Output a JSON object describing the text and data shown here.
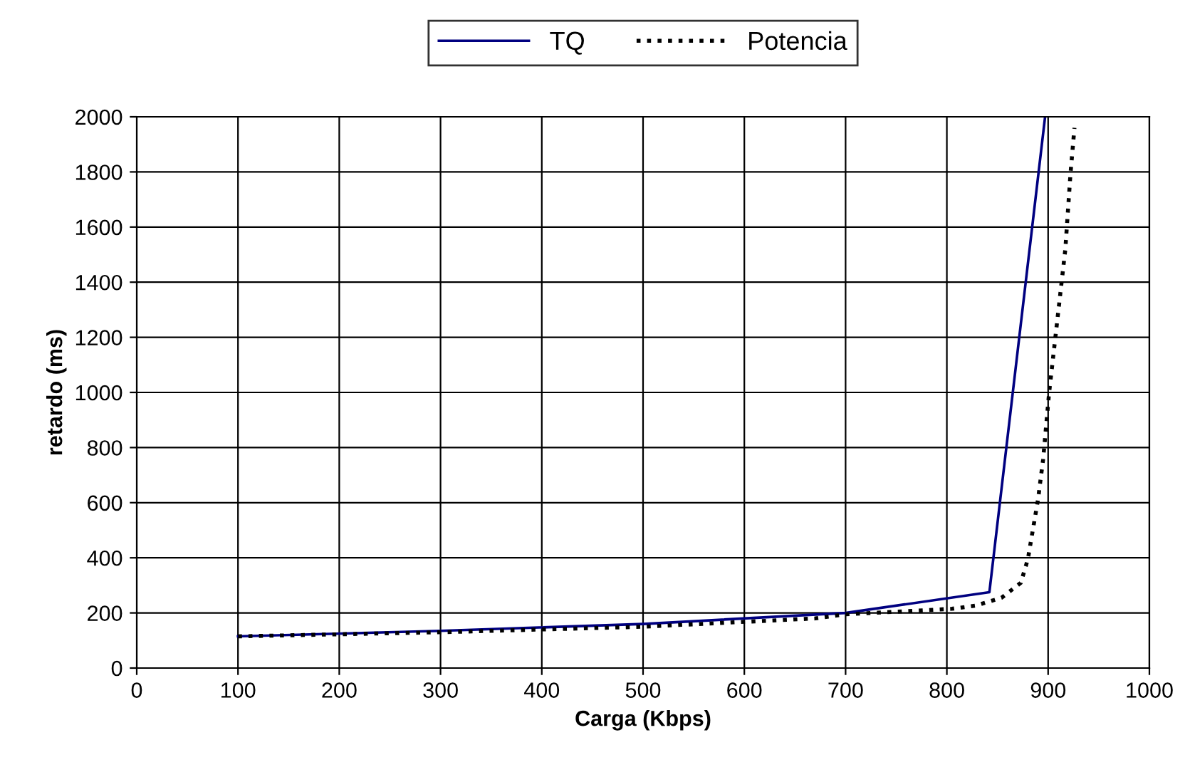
{
  "chart_data": {
    "type": "line",
    "xlabel": "Carga (Kbps)",
    "ylabel": "retardo (ms)",
    "xlim": [
      0,
      1000
    ],
    "xticks": [
      0,
      100,
      200,
      300,
      400,
      500,
      600,
      700,
      800,
      900,
      1000
    ],
    "ylim": [
      0,
      2000
    ],
    "yticks": [
      0,
      200,
      400,
      600,
      800,
      1000,
      1200,
      1400,
      1600,
      1800,
      2000
    ],
    "grid": true,
    "legend": "top",
    "series": [
      {
        "name": "TQ",
        "color": "#000080",
        "line_style": "solid",
        "x": [
          100,
          300,
          500,
          700,
          842,
          897
        ],
        "values": [
          115,
          135,
          160,
          200,
          275,
          2000
        ]
      },
      {
        "name": "Potencia",
        "color": "#000000",
        "line_style": "dotted",
        "x": [
          100,
          300,
          500,
          670,
          700,
          805,
          829,
          854,
          873,
          880,
          890,
          895,
          901,
          907,
          917,
          922,
          926
        ],
        "values": [
          115,
          130,
          150,
          180,
          195,
          215,
          227,
          255,
          309,
          395,
          611,
          755,
          1000,
          1195,
          1520,
          1790,
          1960
        ]
      }
    ]
  }
}
